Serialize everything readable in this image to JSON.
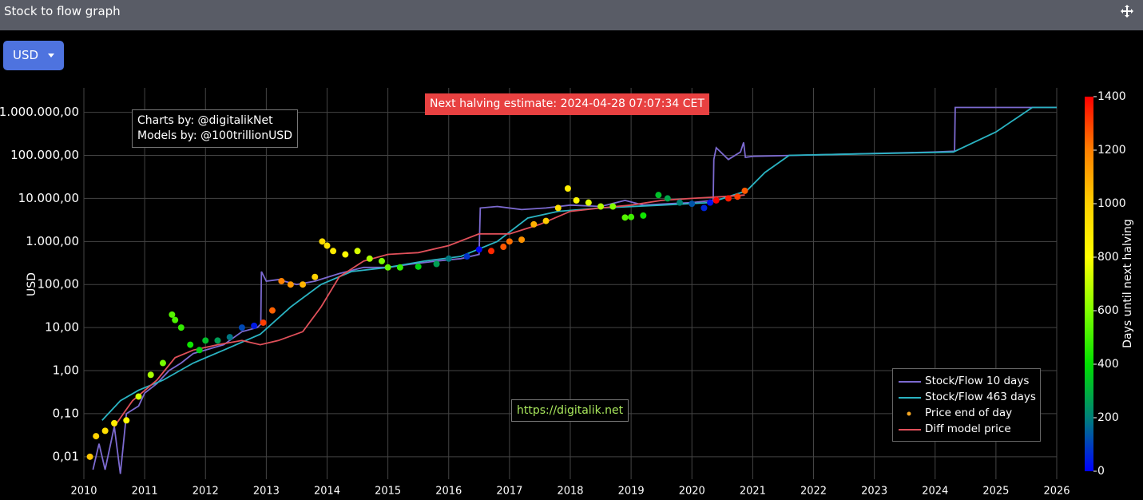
{
  "header": {
    "title": "Stock to flow graph",
    "currency_button": "USD"
  },
  "chart_data": {
    "type": "line",
    "y_label": "USD",
    "annotations": {
      "credits": [
        "Charts by: @digitalikNet",
        "Models by: @100trillionUSD"
      ],
      "halving": "Next halving estimate: 2024-04-28 07:07:34 CET",
      "website": "https://digitalik.net"
    },
    "log_y": true,
    "grid": true,
    "legend_position": "bottom right",
    "xlim": [
      2010,
      2026
    ],
    "xticks": [
      2010,
      2011,
      2012,
      2013,
      2014,
      2015,
      2016,
      2017,
      2018,
      2019,
      2020,
      2021,
      2022,
      2023,
      2024,
      2025,
      2026
    ],
    "ylim": [
      0.003,
      3700000
    ],
    "yticks": [
      {
        "value": 0.01,
        "label": "0,01"
      },
      {
        "value": 0.1,
        "label": "0,10"
      },
      {
        "value": 1,
        "label": "1,00"
      },
      {
        "value": 10,
        "label": "10,00"
      },
      {
        "value": 100,
        "label": "100,00"
      },
      {
        "value": 1000,
        "label": "1.000,00"
      },
      {
        "value": 10000,
        "label": "10.000,00"
      },
      {
        "value": 100000,
        "label": "100.000,00"
      },
      {
        "value": 1000000,
        "label": "1.000.000,00"
      }
    ],
    "colorbar": {
      "title": "Days until next halving",
      "lim": [
        0,
        1400
      ],
      "ticks": [
        0,
        200,
        400,
        600,
        800,
        1000,
        1200,
        1400
      ],
      "colorscale": [
        "#0000ff",
        "#00807a",
        "#00e000",
        "#80ff00",
        "#ffff00",
        "#ffd000",
        "#ff8000",
        "#ff0000"
      ]
    },
    "series": [
      {
        "name": "Stock/Flow 10 days",
        "kind": "line",
        "color": "#7c6ad0",
        "x": [
          2010.15,
          2010.25,
          2010.35,
          2010.5,
          2010.6,
          2010.7,
          2010.9,
          2011.0,
          2011.2,
          2011.4,
          2011.6,
          2011.8,
          2012.0,
          2012.3,
          2012.6,
          2012.85,
          2012.91,
          2012.92,
          2013.0,
          2013.2,
          2013.5,
          2013.8,
          2014.2,
          2014.6,
          2015.0,
          2015.4,
          2015.8,
          2016.2,
          2016.5,
          2016.52,
          2016.8,
          2017.2,
          2017.6,
          2018.0,
          2018.5,
          2018.9,
          2019.2,
          2019.6,
          2020.0,
          2020.35,
          2020.36,
          2020.4,
          2020.6,
          2020.8,
          2020.85,
          2020.88,
          2021.0,
          2021.7,
          2024.0,
          2024.32,
          2024.33,
          2026
        ],
        "values": [
          0.005,
          0.02,
          0.005,
          0.05,
          0.004,
          0.1,
          0.15,
          0.3,
          0.5,
          1,
          1.5,
          2.5,
          3,
          4,
          8,
          10,
          12,
          200,
          120,
          130,
          100,
          120,
          180,
          250,
          250,
          300,
          350,
          400,
          500,
          6000,
          6500,
          5500,
          6000,
          7000,
          6500,
          9000,
          7000,
          7500,
          8000,
          9000,
          80000,
          150000,
          80000,
          120000,
          200000,
          90000,
          95000,
          100000,
          120000,
          125000,
          1300000,
          1300000
        ]
      },
      {
        "name": "Stock/Flow 463 days",
        "kind": "line",
        "color": "#2ab3c2",
        "x": [
          2010.3,
          2010.6,
          2010.9,
          2011.3,
          2011.8,
          2012.3,
          2012.9,
          2013.4,
          2013.9,
          2014.4,
          2015.0,
          2015.6,
          2016.2,
          2016.8,
          2017.3,
          2017.8,
          2018.5,
          2019.5,
          2020.3,
          2020.9,
          2021.2,
          2021.6,
          2024.3,
          2025.0,
          2025.6,
          2026
        ],
        "values": [
          0.07,
          0.2,
          0.35,
          0.6,
          1.5,
          3,
          7,
          30,
          100,
          200,
          250,
          350,
          450,
          1000,
          3500,
          5000,
          6000,
          7000,
          8000,
          15000,
          40000,
          100000,
          120000,
          350000,
          1300000,
          1300000
        ]
      },
      {
        "name": "Price end of day",
        "kind": "points",
        "color": "#f5a623",
        "x": [
          2010.1,
          2010.2,
          2010.35,
          2010.5,
          2010.7,
          2010.9,
          2011.1,
          2011.3,
          2011.45,
          2011.5,
          2011.6,
          2011.75,
          2011.9,
          2012.0,
          2012.2,
          2012.4,
          2012.6,
          2012.8,
          2012.95,
          2013.1,
          2013.25,
          2013.4,
          2013.6,
          2013.8,
          2013.92,
          2014.0,
          2014.1,
          2014.3,
          2014.5,
          2014.7,
          2014.9,
          2015.0,
          2015.2,
          2015.5,
          2015.8,
          2016.0,
          2016.3,
          2016.5,
          2016.7,
          2016.9,
          2017.0,
          2017.2,
          2017.4,
          2017.6,
          2017.8,
          2017.96,
          2018.1,
          2018.3,
          2018.5,
          2018.7,
          2018.9,
          2019.0,
          2019.2,
          2019.45,
          2019.6,
          2019.8,
          2020.0,
          2020.2,
          2020.3,
          2020.4,
          2020.6,
          2020.75,
          2020.87
        ],
        "values": [
          0.01,
          0.03,
          0.04,
          0.06,
          0.07,
          0.25,
          0.8,
          1.5,
          20,
          15,
          10,
          4,
          3,
          5,
          5,
          6,
          10,
          11,
          13,
          25,
          120,
          100,
          100,
          150,
          1000,
          800,
          600,
          500,
          600,
          400,
          350,
          250,
          250,
          260,
          300,
          400,
          450,
          650,
          600,
          750,
          1000,
          1100,
          2500,
          3000,
          6000,
          17000,
          9000,
          8000,
          6500,
          6500,
          3600,
          3700,
          4000,
          12000,
          10000,
          8000,
          7500,
          6000,
          8000,
          9000,
          10000,
          11000,
          15000
        ],
        "days": [
          1026,
          990,
          935,
          880,
          807,
          734,
          661,
          588,
          533,
          515,
          478,
          424,
          369,
          332,
          259,
          186,
          113,
          40,
          1304,
          1249,
          1194,
          1140,
          1067,
          993,
          950,
          920,
          884,
          811,
          738,
          665,
          592,
          555,
          482,
          373,
          263,
          190,
          80,
          7,
          1337,
          1264,
          1227,
          1154,
          1081,
          1008,
          935,
          877,
          826,
          752,
          679,
          606,
          533,
          497,
          424,
          332,
          278,
          205,
          131,
          58,
          22,
          1432,
          1359,
          1304,
          1260
        ]
      },
      {
        "name": "Diff model price",
        "kind": "line",
        "color": "#e0505a",
        "x": [
          2010.5,
          2010.8,
          2011.2,
          2011.5,
          2011.8,
          2012.2,
          2012.6,
          2012.9,
          2013.2,
          2013.6,
          2013.9,
          2014.2,
          2014.6,
          2015.0,
          2015.5,
          2016.0,
          2016.5,
          2017.0,
          2017.5,
          2018.0,
          2018.5,
          2019.0,
          2019.5,
          2020.0,
          2020.5,
          2020.87
        ],
        "values": [
          0.05,
          0.2,
          0.6,
          2,
          3,
          4,
          5,
          4,
          5,
          8,
          30,
          150,
          350,
          500,
          550,
          800,
          1500,
          1500,
          2500,
          5000,
          6000,
          7000,
          9000,
          10000,
          11000,
          12000
        ]
      }
    ]
  }
}
